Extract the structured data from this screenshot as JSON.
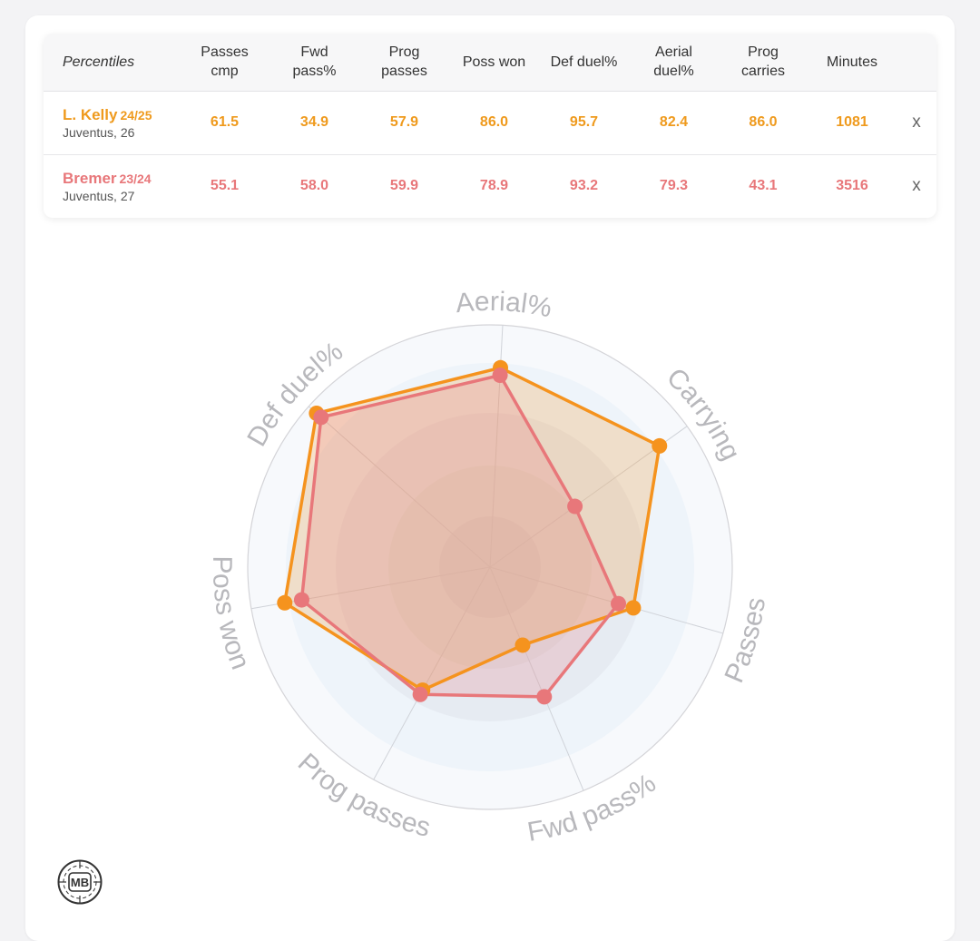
{
  "table": {
    "corner_label": "Percentiles",
    "columns": [
      "Passes\ncmp",
      "Fwd\npass%",
      "Prog\npasses",
      "Poss won",
      "Def duel%",
      "Aerial\nduel%",
      "Prog\ncarries",
      "Minutes"
    ],
    "rows": [
      {
        "name": "L. Kelly",
        "season": "24/25",
        "team": "Juventus, 26",
        "values": [
          "61.5",
          "34.9",
          "57.9",
          "86.0",
          "95.7",
          "82.4",
          "86.0",
          "1081"
        ],
        "color": "#ef9a1d",
        "remove": "x"
      },
      {
        "name": "Bremer",
        "season": "23/24",
        "team": "Juventus, 27",
        "values": [
          "55.1",
          "58.0",
          "59.9",
          "78.9",
          "93.2",
          "79.3",
          "43.1",
          "3516"
        ],
        "color": "#e8777a",
        "remove": "x"
      }
    ]
  },
  "chart_data": {
    "type": "radar",
    "axes": [
      "Aerial%",
      "Carrying",
      "Passes",
      "Fwd pass%",
      "Prog passes",
      "Poss won",
      "Def duel%"
    ],
    "range": [
      0,
      100
    ],
    "series": [
      {
        "name": "L. Kelly",
        "values": [
          82.4,
          86.0,
          61.5,
          34.9,
          57.9,
          86.0,
          95.7
        ],
        "color": "#f5931e"
      },
      {
        "name": "Bremer",
        "values": [
          79.3,
          43.1,
          55.1,
          58.0,
          59.9,
          78.9,
          93.2
        ],
        "color": "#e8777a"
      }
    ]
  },
  "logo": {
    "text": "MB"
  }
}
